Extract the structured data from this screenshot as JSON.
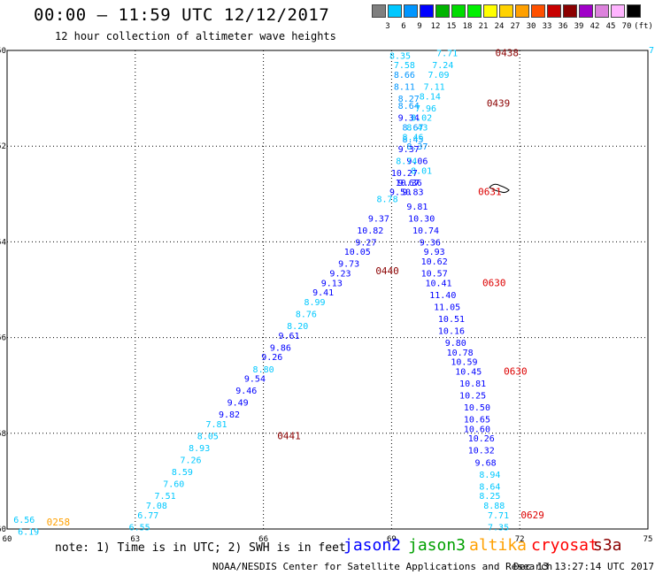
{
  "header": {
    "title": "00:00 – 11:59 UTC 12/12/2017",
    "subtitle": "12 hour collection of altimeter wave heights"
  },
  "color_scale": {
    "unit": "(ft)",
    "labels": [
      "3",
      "6",
      "9",
      "12",
      "15",
      "18",
      "21",
      "24",
      "27",
      "30",
      "33",
      "36",
      "39",
      "42",
      "45",
      "70"
    ],
    "colors": [
      "#7f7f7f",
      "#00c8ff",
      "#0096ff",
      "#0000ff",
      "#00b400",
      "#00dc00",
      "#00f000",
      "#ffff00",
      "#ffd200",
      "#ffa000",
      "#ff5000",
      "#c80000",
      "#8b0000",
      "#a000c8",
      "#dc82dc",
      "#ffb4ff",
      "#000000"
    ]
  },
  "map": {
    "lon_ticks": [
      "60",
      "63",
      "66",
      "69",
      "72",
      "75"
    ],
    "lat_ticks": [
      "-50",
      "-52",
      "-54",
      "-56",
      "-58",
      "-60"
    ],
    "corner_label": "7."
  },
  "chart_data": {
    "type": "scatter",
    "xlim": [
      60,
      75
    ],
    "ylim": [
      -60,
      -50
    ],
    "grid": true,
    "track_time_labels": [
      {
        "text": "0438",
        "lon": 71.7,
        "lat": -50.05,
        "color": "#8b0000"
      },
      {
        "text": "0439",
        "lon": 71.5,
        "lat": -51.1,
        "color": "#8b0000"
      },
      {
        "text": "0631",
        "lon": 71.3,
        "lat": -52.95,
        "color": "#dd0000"
      },
      {
        "text": "0440",
        "lon": 68.9,
        "lat": -54.6,
        "color": "#8b0000"
      },
      {
        "text": "0630",
        "lon": 71.4,
        "lat": -54.85,
        "color": "#dd0000"
      },
      {
        "text": "0630",
        "lon": 71.9,
        "lat": -56.7,
        "color": "#dd0000"
      },
      {
        "text": "0441",
        "lon": 66.6,
        "lat": -58.05,
        "color": "#8b0000"
      },
      {
        "text": "0258",
        "lon": 61.2,
        "lat": -59.85,
        "color": "#ffa000"
      },
      {
        "text": "0629",
        "lon": 72.3,
        "lat": -59.7,
        "color": "#dd0000"
      }
    ],
    "wave_heights": [
      {
        "v": "8.35",
        "lon": 69.2,
        "lat": -50.1,
        "c": "#00c8ff"
      },
      {
        "v": "7.58",
        "lon": 69.3,
        "lat": -50.3,
        "c": "#00c8ff"
      },
      {
        "v": "8.66",
        "lon": 69.3,
        "lat": -50.5,
        "c": "#0096ff"
      },
      {
        "v": "8.11",
        "lon": 69.3,
        "lat": -50.75,
        "c": "#0096ff"
      },
      {
        "v": "8.27",
        "lon": 69.4,
        "lat": -51.0,
        "c": "#0096ff"
      },
      {
        "v": "8.64",
        "lon": 69.4,
        "lat": -51.15,
        "c": "#0096ff"
      },
      {
        "v": "9.34",
        "lon": 69.4,
        "lat": -51.4,
        "c": "#0000ff"
      },
      {
        "v": "8.67",
        "lon": 69.5,
        "lat": -51.6,
        "c": "#0096ff"
      },
      {
        "v": "8.45",
        "lon": 69.5,
        "lat": -51.85,
        "c": "#0096ff"
      },
      {
        "v": "8.37",
        "lon": 69.6,
        "lat": -52.0,
        "c": "#0096ff"
      },
      {
        "v": "9.06",
        "lon": 69.6,
        "lat": -52.3,
        "c": "#0000ff"
      },
      {
        "v": "8.01",
        "lon": 69.7,
        "lat": -52.5,
        "c": "#00c8ff"
      },
      {
        "v": "9.67",
        "lon": 69.4,
        "lat": -52.75,
        "c": "#0000ff"
      },
      {
        "v": "9.50",
        "lon": 69.2,
        "lat": -52.95,
        "c": "#0000ff"
      },
      {
        "v": "8.78",
        "lon": 68.9,
        "lat": -53.1,
        "c": "#00c8ff"
      },
      {
        "v": "9.37",
        "lon": 68.7,
        "lat": -53.5,
        "c": "#0000ff"
      },
      {
        "v": "10.82",
        "lon": 68.5,
        "lat": -53.75,
        "c": "#0000ff"
      },
      {
        "v": "9.27",
        "lon": 68.4,
        "lat": -54.0,
        "c": "#0000ff"
      },
      {
        "v": "10.05",
        "lon": 68.2,
        "lat": -54.2,
        "c": "#0000ff"
      },
      {
        "v": "9.73",
        "lon": 68.0,
        "lat": -54.45,
        "c": "#0000ff"
      },
      {
        "v": "9.23",
        "lon": 67.8,
        "lat": -54.65,
        "c": "#0000ff"
      },
      {
        "v": "9.13",
        "lon": 67.6,
        "lat": -54.85,
        "c": "#0000ff"
      },
      {
        "v": "9.41",
        "lon": 67.4,
        "lat": -55.05,
        "c": "#0000ff"
      },
      {
        "v": "8.99",
        "lon": 67.2,
        "lat": -55.25,
        "c": "#00c8ff"
      },
      {
        "v": "8.76",
        "lon": 67.0,
        "lat": -55.5,
        "c": "#00c8ff"
      },
      {
        "v": "8.20",
        "lon": 66.8,
        "lat": -55.75,
        "c": "#00c8ff"
      },
      {
        "v": "9.61",
        "lon": 66.6,
        "lat": -55.95,
        "c": "#0000ff"
      },
      {
        "v": "9.86",
        "lon": 66.4,
        "lat": -56.2,
        "c": "#0000ff"
      },
      {
        "v": "9.26",
        "lon": 66.2,
        "lat": -56.4,
        "c": "#0000ff"
      },
      {
        "v": "8.80",
        "lon": 66.0,
        "lat": -56.65,
        "c": "#00c8ff"
      },
      {
        "v": "9.54",
        "lon": 65.8,
        "lat": -56.85,
        "c": "#0000ff"
      },
      {
        "v": "9.46",
        "lon": 65.6,
        "lat": -57.1,
        "c": "#0000ff"
      },
      {
        "v": "9.49",
        "lon": 65.4,
        "lat": -57.35,
        "c": "#0000ff"
      },
      {
        "v": "9.82",
        "lon": 65.2,
        "lat": -57.6,
        "c": "#0000ff"
      },
      {
        "v": "7.81",
        "lon": 64.9,
        "lat": -57.8,
        "c": "#00c8ff"
      },
      {
        "v": "8.05",
        "lon": 64.7,
        "lat": -58.05,
        "c": "#00c8ff"
      },
      {
        "v": "8.93",
        "lon": 64.5,
        "lat": -58.3,
        "c": "#00c8ff"
      },
      {
        "v": "7.26",
        "lon": 64.3,
        "lat": -58.55,
        "c": "#00c8ff"
      },
      {
        "v": "8.59",
        "lon": 64.1,
        "lat": -58.8,
        "c": "#00c8ff"
      },
      {
        "v": "7.60",
        "lon": 63.9,
        "lat": -59.05,
        "c": "#00c8ff"
      },
      {
        "v": "7.51",
        "lon": 63.7,
        "lat": -59.3,
        "c": "#00c8ff"
      },
      {
        "v": "7.08",
        "lon": 63.5,
        "lat": -59.5,
        "c": "#00c8ff"
      },
      {
        "v": "6.77",
        "lon": 63.3,
        "lat": -59.7,
        "c": "#00c8ff"
      },
      {
        "v": "6.55",
        "lon": 63.1,
        "lat": -59.95,
        "c": "#00c8ff"
      },
      {
        "v": "6.56",
        "lon": 60.4,
        "lat": -59.8,
        "c": "#00c8ff"
      },
      {
        "v": "6.19",
        "lon": 60.5,
        "lat": -60.05,
        "c": "#00c8ff"
      },
      {
        "v": "7.71",
        "lon": 70.3,
        "lat": -50.05,
        "c": "#00c8ff"
      },
      {
        "v": "7.24",
        "lon": 70.2,
        "lat": -50.3,
        "c": "#00c8ff"
      },
      {
        "v": "7.09",
        "lon": 70.1,
        "lat": -50.5,
        "c": "#00c8ff"
      },
      {
        "v": "7.11",
        "lon": 70.0,
        "lat": -50.75,
        "c": "#00c8ff"
      },
      {
        "v": "8.14",
        "lon": 69.9,
        "lat": -50.95,
        "c": "#00c8ff"
      },
      {
        "v": "7.96",
        "lon": 69.8,
        "lat": -51.2,
        "c": "#00c8ff"
      },
      {
        "v": "8.02",
        "lon": 69.7,
        "lat": -51.4,
        "c": "#00c8ff"
      },
      {
        "v": "8.43",
        "lon": 69.6,
        "lat": -51.6,
        "c": "#00c8ff"
      },
      {
        "v": "8.46",
        "lon": 69.5,
        "lat": -51.8,
        "c": "#00c8ff"
      },
      {
        "v": "9.37",
        "lon": 69.4,
        "lat": -52.05,
        "c": "#0000ff"
      },
      {
        "v": "8.74",
        "lon": 69.35,
        "lat": -52.3,
        "c": "#00c8ff"
      },
      {
        "v": "10.27",
        "lon": 69.3,
        "lat": -52.55,
        "c": "#0000ff"
      },
      {
        "v": "10.36",
        "lon": 69.4,
        "lat": -52.75,
        "c": "#0000ff"
      },
      {
        "v": "9.83",
        "lon": 69.5,
        "lat": -52.95,
        "c": "#0000ff"
      },
      {
        "v": "9.81",
        "lon": 69.6,
        "lat": -53.25,
        "c": "#0000ff"
      },
      {
        "v": "10.30",
        "lon": 69.7,
        "lat": -53.5,
        "c": "#0000ff"
      },
      {
        "v": "10.74",
        "lon": 69.8,
        "lat": -53.75,
        "c": "#0000ff"
      },
      {
        "v": "9.36",
        "lon": 69.9,
        "lat": -54.0,
        "c": "#0000ff"
      },
      {
        "v": "9.93",
        "lon": 70.0,
        "lat": -54.2,
        "c": "#0000ff"
      },
      {
        "v": "10.62",
        "lon": 70.0,
        "lat": -54.4,
        "c": "#0000ff"
      },
      {
        "v": "10.57",
        "lon": 70.0,
        "lat": -54.65,
        "c": "#0000ff"
      },
      {
        "v": "10.41",
        "lon": 70.1,
        "lat": -54.85,
        "c": "#0000ff"
      },
      {
        "v": "11.40",
        "lon": 70.2,
        "lat": -55.1,
        "c": "#0000ff"
      },
      {
        "v": "11.05",
        "lon": 70.3,
        "lat": -55.35,
        "c": "#0000ff"
      },
      {
        "v": "10.51",
        "lon": 70.4,
        "lat": -55.6,
        "c": "#0000ff"
      },
      {
        "v": "10.16",
        "lon": 70.4,
        "lat": -55.85,
        "c": "#0000ff"
      },
      {
        "v": "9.80",
        "lon": 70.5,
        "lat": -56.1,
        "c": "#0000ff"
      },
      {
        "v": "10.78",
        "lon": 70.6,
        "lat": -56.3,
        "c": "#0000ff"
      },
      {
        "v": "10.59",
        "lon": 70.7,
        "lat": -56.5,
        "c": "#0000ff"
      },
      {
        "v": "10.45",
        "lon": 70.8,
        "lat": -56.7,
        "c": "#0000ff"
      },
      {
        "v": "10.81",
        "lon": 70.9,
        "lat": -56.95,
        "c": "#0000ff"
      },
      {
        "v": "10.25",
        "lon": 70.9,
        "lat": -57.2,
        "c": "#0000ff"
      },
      {
        "v": "10.50",
        "lon": 71.0,
        "lat": -57.45,
        "c": "#0000ff"
      },
      {
        "v": "10.65",
        "lon": 71.0,
        "lat": -57.7,
        "c": "#0000ff"
      },
      {
        "v": "10.60",
        "lon": 71.0,
        "lat": -57.9,
        "c": "#0000ff"
      },
      {
        "v": "10.26",
        "lon": 71.1,
        "lat": -58.1,
        "c": "#0000ff"
      },
      {
        "v": "10.32",
        "lon": 71.1,
        "lat": -58.35,
        "c": "#0000ff"
      },
      {
        "v": "9.68",
        "lon": 71.2,
        "lat": -58.6,
        "c": "#0000ff"
      },
      {
        "v": "8.94",
        "lon": 71.3,
        "lat": -58.85,
        "c": "#00c8ff"
      },
      {
        "v": "8.64",
        "lon": 71.3,
        "lat": -59.1,
        "c": "#00c8ff"
      },
      {
        "v": "8.25",
        "lon": 71.3,
        "lat": -59.3,
        "c": "#00c8ff"
      },
      {
        "v": "8.88",
        "lon": 71.4,
        "lat": -59.5,
        "c": "#00c8ff"
      },
      {
        "v": "7.71",
        "lon": 71.5,
        "lat": -59.7,
        "c": "#00c8ff"
      },
      {
        "v": "7.35",
        "lon": 71.5,
        "lat": -59.95,
        "c": "#00c8ff"
      }
    ]
  },
  "legend": {
    "note": "note: 1) Time is in UTC; 2) SWH is in feet",
    "satellites": [
      {
        "name": "jason2",
        "color": "#0000ff"
      },
      {
        "name": "jason3",
        "color": "#00a000"
      },
      {
        "name": "altika",
        "color": "#ffa000"
      },
      {
        "name": "cryosat",
        "color": "#ff0000"
      },
      {
        "name": "s3a",
        "color": "#8b0000"
      }
    ]
  },
  "footer": {
    "credit": "NOAA/NESDIS Center for Satellite Applications and Research",
    "timestamp": "Dec 13 13:27:14 UTC 2017"
  }
}
